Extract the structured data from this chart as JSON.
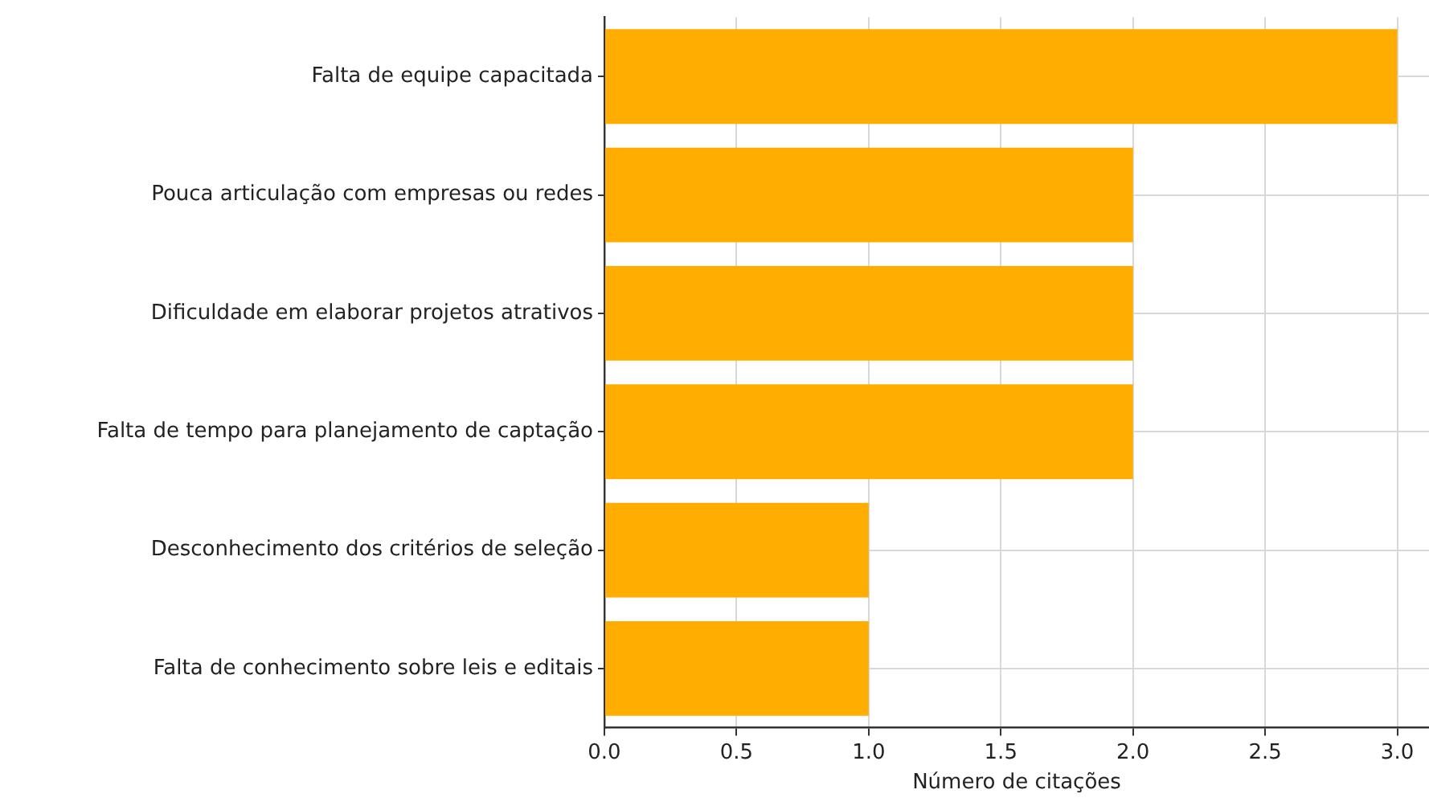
{
  "chart_data": {
    "type": "bar",
    "orientation": "horizontal",
    "xlabel": "Número de citações",
    "categories": [
      "Falta de equipe capacitada",
      "Pouca articulação com empresas ou redes",
      "Dificuldade em elaborar projetos atrativos",
      "Falta de tempo para planejamento de captação",
      "Desconhecimento dos critérios de seleção",
      "Falta de conhecimento sobre leis e editais"
    ],
    "values": [
      3,
      2,
      2,
      2,
      1,
      1
    ],
    "color": "#ffad00",
    "xlim": [
      0,
      3.12
    ],
    "xticks": [
      {
        "value": 0,
        "label": "0.0"
      },
      {
        "value": 0.5,
        "label": "0.5"
      },
      {
        "value": 1,
        "label": "1.0"
      },
      {
        "value": 1.5,
        "label": "1.5"
      },
      {
        "value": 2,
        "label": "2.0"
      },
      {
        "value": 2.5,
        "label": "2.5"
      },
      {
        "value": 3,
        "label": "3.0"
      }
    ],
    "grid": true,
    "legend": false
  }
}
